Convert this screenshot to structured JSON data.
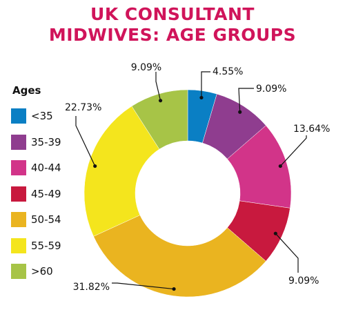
{
  "chart_data": {
    "type": "pie",
    "title_lines": [
      "UK CONSULTANT",
      "MIDWIVES: AGE GROUPS"
    ],
    "legend_title": "Ages",
    "legend_position": "left",
    "categories": [
      "<35",
      "35-39",
      "40-44",
      "45-49",
      "50-54",
      "55-59",
      ">60"
    ],
    "values": [
      4.55,
      9.09,
      13.64,
      9.09,
      31.82,
      22.73,
      9.09
    ],
    "data_labels": [
      "4.55%",
      "9.09%",
      "13.64%",
      "9.09%",
      "31.82%",
      "22.73%",
      "9.09%"
    ],
    "colors": [
      "#0a7fc4",
      "#8f3d8f",
      "#d23489",
      "#c8193e",
      "#eab420",
      "#f4e51d",
      "#a7c447"
    ],
    "title_color": "#d0145a",
    "donut": true
  }
}
